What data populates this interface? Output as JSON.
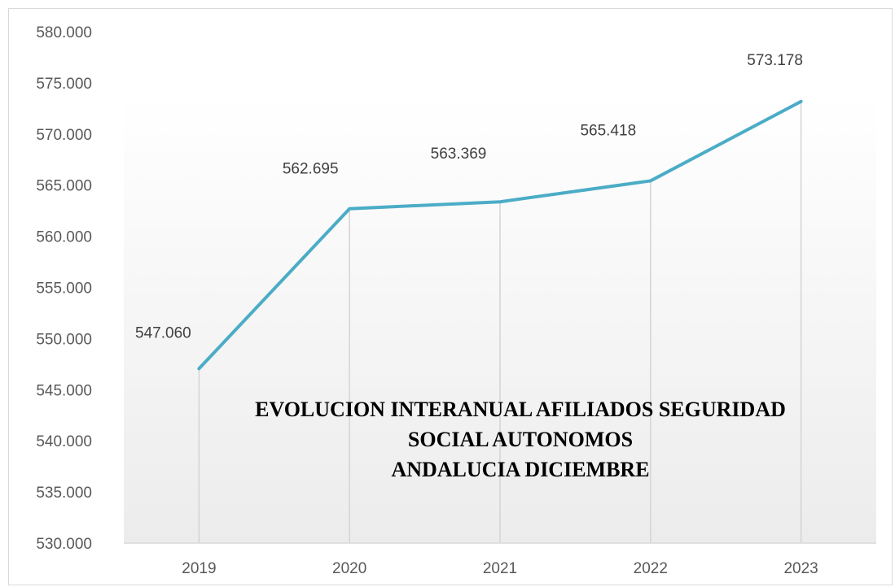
{
  "chart_data": {
    "type": "line",
    "title_lines": [
      "EVOLUCION INTERANUAL AFILIADOS SEGURIDAD",
      "SOCIAL AUTONOMOS",
      "ANDALUCIA  DICIEMBRE"
    ],
    "categories": [
      "2019",
      "2020",
      "2021",
      "2022",
      "2023"
    ],
    "series": [
      {
        "values": [
          547060,
          562695,
          563369,
          565418,
          573178
        ],
        "labels": [
          "547.060",
          "562.695",
          "563.369",
          "565.418",
          "573.178"
        ],
        "color": "#4bacc6"
      }
    ],
    "ylim": [
      530000,
      580000
    ],
    "ytick_values": [
      530000,
      535000,
      540000,
      545000,
      550000,
      555000,
      560000,
      565000,
      570000,
      575000,
      580000
    ],
    "ytick_labels": [
      "530.000",
      "535.000",
      "540.000",
      "545.000",
      "550.000",
      "555.000",
      "560.000",
      "565.000",
      "570.000",
      "575.000",
      "580.000"
    ],
    "xlabel": "",
    "ylabel": "",
    "grid": "vertical drop lines at each category",
    "legend": "none",
    "colors": {
      "line": "#4bacc6",
      "axis": "#d9d9d9",
      "tick_text": "#595959",
      "plot_gradient_top": "#ffffff",
      "plot_gradient_bottom": "#ececec"
    }
  }
}
